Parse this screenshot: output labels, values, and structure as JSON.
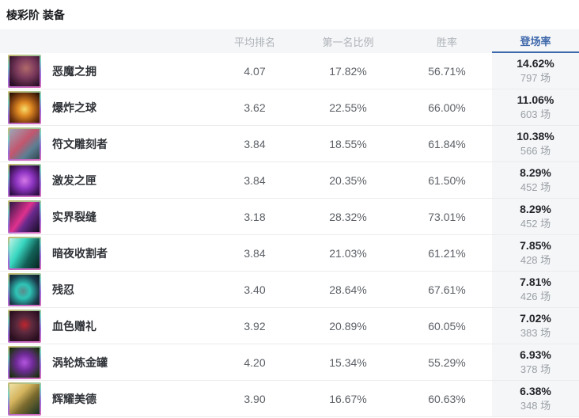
{
  "page": {
    "title": "棱彩阶 装备"
  },
  "colors": {
    "accent_blue": "#3e68ac",
    "header_bg": "#f5f6f7",
    "pick_column_bg": "#f5f6f8",
    "row_divider": "#ececec"
  },
  "table": {
    "columns": {
      "item": "",
      "avg_rank": "平均排名",
      "top1_rate": "第一名比例",
      "win_rate": "胜率",
      "pick_rate": "登场率"
    },
    "active_sort_column": "登场率",
    "rows": [
      {
        "name": "恶魔之拥",
        "avg_rank": "4.07",
        "top1_rate": "17.82%",
        "win_rate": "56.71%",
        "pick_rate": "14.62%",
        "games": "797 场",
        "icon_gradient": "radial-gradient(circle at 55% 40%, #b06a6a 0%, #7c3a5c 40%, #2a0e28 85%)"
      },
      {
        "name": "爆炸之球",
        "avg_rank": "3.62",
        "top1_rate": "22.55%",
        "win_rate": "66.00%",
        "pick_rate": "11.06%",
        "games": "603 场",
        "icon_gradient": "radial-gradient(circle at 50% 55%, #f6dd6e 0%, #e08a22 30%, #7a3c10 65%, #241003 95%)"
      },
      {
        "name": "符文雕刻者",
        "avg_rank": "3.84",
        "top1_rate": "18.55%",
        "win_rate": "61.84%",
        "pick_rate": "10.38%",
        "games": "566 场",
        "icon_gradient": "linear-gradient(135deg, #9aa7b8 0%, #c2566e 45%, #5d7f93 70%, #31454f 100%)"
      },
      {
        "name": "激发之匣",
        "avg_rank": "3.84",
        "top1_rate": "20.35%",
        "win_rate": "61.50%",
        "pick_rate": "8.29%",
        "games": "452 场",
        "icon_gradient": "radial-gradient(circle at 50% 50%, #d678e8 0%, #8e35c2 40%, #471763 75%, #1c0930 100%)"
      },
      {
        "name": "实界裂缝",
        "avg_rank": "3.18",
        "top1_rate": "28.32%",
        "win_rate": "73.01%",
        "pick_rate": "8.29%",
        "games": "452 场",
        "icon_gradient": "linear-gradient(125deg, #2b1745 0%, #e0318e 45%, #6a2a8e 60%, #140c22 100%)"
      },
      {
        "name": "暗夜收割者",
        "avg_rank": "3.84",
        "top1_rate": "21.03%",
        "win_rate": "61.21%",
        "pick_rate": "7.85%",
        "games": "428 场",
        "icon_gradient": "linear-gradient(120deg, #bff3e4 0%, #37d6c0 35%, #126057 65%, #07231f 100%)"
      },
      {
        "name": "残忍",
        "avg_rank": "3.40",
        "top1_rate": "28.64%",
        "win_rate": "67.61%",
        "pick_rate": "7.81%",
        "games": "426 场",
        "icon_gradient": "radial-gradient(circle at 45% 55%, #5a8a8c 0%, #2ec4b6 30%, #1b3a4a 70%, #0a1622 100%)"
      },
      {
        "name": "血色赠礼",
        "avg_rank": "3.92",
        "top1_rate": "20.89%",
        "win_rate": "60.05%",
        "pick_rate": "7.02%",
        "games": "383 场",
        "icon_gradient": "radial-gradient(circle at 50% 45%, #c0252e 0%, #5c2a3e 35%, #2a0f20 80%)"
      },
      {
        "name": "涡轮炼金罐",
        "avg_rank": "4.20",
        "top1_rate": "15.34%",
        "win_rate": "55.29%",
        "pick_rate": "6.93%",
        "games": "378 场",
        "icon_gradient": "radial-gradient(circle at 50% 50%, #b455e0 0%, #6e2a96 40%, #23321a 85%, #101a0a 100%)"
      },
      {
        "name": "辉耀美德",
        "avg_rank": "3.90",
        "top1_rate": "16.67%",
        "win_rate": "60.63%",
        "pick_rate": "6.38%",
        "games": "348 场",
        "icon_gradient": "linear-gradient(135deg, #f0e3a8 0%, #d4b45e 35%, #7a6a2e 60%, #173326 100%)"
      }
    ]
  }
}
